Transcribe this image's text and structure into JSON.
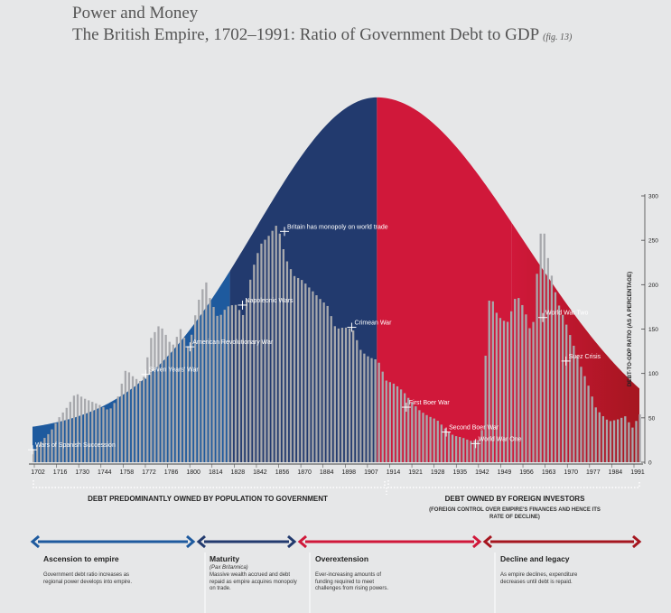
{
  "header": {
    "title1": "Power and Money",
    "title2": "The British Empire, 1702–1991: Ratio of Government Debt to GDP",
    "figref": "(fig. 13)"
  },
  "colors": {
    "early_blue": "#1e5a9e",
    "mature_navy": "#223a6e",
    "overext_red": "#d0183a",
    "decline_red": "#a5161f",
    "bar": "#a8a9ad"
  },
  "chart_data": {
    "type": "bar",
    "ylabel": "DEBT-TO-GDP RATIO (AS A PERCENTAGE)",
    "ylim": [
      0,
      300
    ],
    "yticks": [
      0,
      50,
      100,
      150,
      200,
      250,
      300
    ],
    "x_range": [
      1702,
      1991
    ],
    "xtick_labels": [
      "1702",
      "1716",
      "1730",
      "1744",
      "1758",
      "1772",
      "1786",
      "1800",
      "1814",
      "1828",
      "1842",
      "1856",
      "1870",
      "1884",
      "1898",
      "1907",
      "1914",
      "1921",
      "1928",
      "1935",
      "1942",
      "1949",
      "1956",
      "1963",
      "1970",
      "1977",
      "1984",
      "1991"
    ],
    "series": [
      {
        "anchor_years": [
          1702,
          1705,
          1710,
          1714,
          1718,
          1722,
          1726,
          1730,
          1734,
          1738,
          1742,
          1746,
          1750,
          1754,
          1758,
          1762,
          1764,
          1768,
          1772,
          1776,
          1780,
          1784,
          1786,
          1790,
          1794,
          1798,
          1802,
          1806,
          1810,
          1814,
          1818,
          1819,
          1822,
          1826,
          1830,
          1834,
          1838,
          1842,
          1846,
          1850,
          1854,
          1858,
          1862,
          1866,
          1870,
          1874,
          1878,
          1882,
          1886,
          1890,
          1894,
          1898,
          1902,
          1906,
          1910,
          1913,
          1914,
          1916,
          1917,
          1918,
          1919,
          1920,
          1922,
          1925,
          1928,
          1932,
          1934,
          1936,
          1938,
          1940,
          1942,
          1944,
          1946,
          1947,
          1950,
          1952,
          1955,
          1958,
          1962,
          1966,
          1970,
          1974,
          1976,
          1980,
          1984,
          1987,
          1991
        ],
        "anchor_values": [
          15,
          22,
          34,
          50,
          62,
          78,
          72,
          68,
          64,
          58,
          72,
          105,
          95,
          90,
          140,
          155,
          148,
          130,
          150,
          128,
          178,
          205,
          185,
          162,
          175,
          178,
          165,
          215,
          245,
          255,
          268,
          260,
          230,
          210,
          205,
          195,
          185,
          176,
          150,
          152,
          150,
          125,
          118,
          115,
          92,
          88,
          80,
          68,
          58,
          52,
          48,
          38,
          30,
          28,
          24,
          25,
          25,
          40,
          110,
          150,
          182,
          188,
          170,
          160,
          158,
          190,
          180,
          172,
          150,
          158,
          220,
          270,
          250,
          230,
          196,
          178,
          160,
          140,
          112,
          88,
          60,
          50,
          46,
          48,
          52,
          38,
          55
        ]
      }
    ],
    "bell_curve": {
      "peak_year": 1866,
      "peak_value": 411,
      "start_value": 40,
      "end_value": 83
    },
    "annotations": [
      {
        "label": "Wars of Spanish Succession",
        "year": 1702,
        "value": 14
      },
      {
        "label": "Seven Years' War",
        "year": 1756,
        "value": 99
      },
      {
        "label": "American Revolutionary War",
        "year": 1777,
        "value": 130
      },
      {
        "label": "Napoleonic Wars",
        "year": 1802,
        "value": 177
      },
      {
        "label": "Britain has monopoly on world trade",
        "year": 1822,
        "value": 260
      },
      {
        "label": "Crimean War",
        "year": 1854,
        "value": 152
      },
      {
        "label": "First Boer War",
        "year": 1880,
        "value": 62
      },
      {
        "label": "Second Boer War",
        "year": 1899,
        "value": 34
      },
      {
        "label": "World War One",
        "year": 1913,
        "value": 21
      },
      {
        "label": "World War Two",
        "year": 1945,
        "value": 163
      },
      {
        "label": "Suez Crisis",
        "year": 1956,
        "value": 114
      }
    ]
  },
  "sections": {
    "left_label": "DEBT PREDOMINANTLY OWNED BY POPULATION TO GOVERNMENT",
    "right_label": "DEBT OWNED BY FOREIGN INVESTORS",
    "right_sub": "(FOREIGN CONTROL OVER EMPIRE'S FINANCES AND HENCE ITS RATE OF DECLINE)"
  },
  "phases": [
    {
      "title": "Ascension to empire",
      "sub": "",
      "desc": "Government debt ratio increases as regional power develops into empire."
    },
    {
      "title": "Maturity",
      "sub": "(Pax Britannica)",
      "desc": "Massive wealth accrued and debt repaid as empire acquires monopoly on trade."
    },
    {
      "title": "Overextension",
      "sub": "",
      "desc": "Ever-increasing amounts of funding required to meet challenges from rising powers."
    },
    {
      "title": "Decline and legacy",
      "sub": "",
      "desc": "As empire declines, expenditure decreases until debt is repaid."
    }
  ]
}
